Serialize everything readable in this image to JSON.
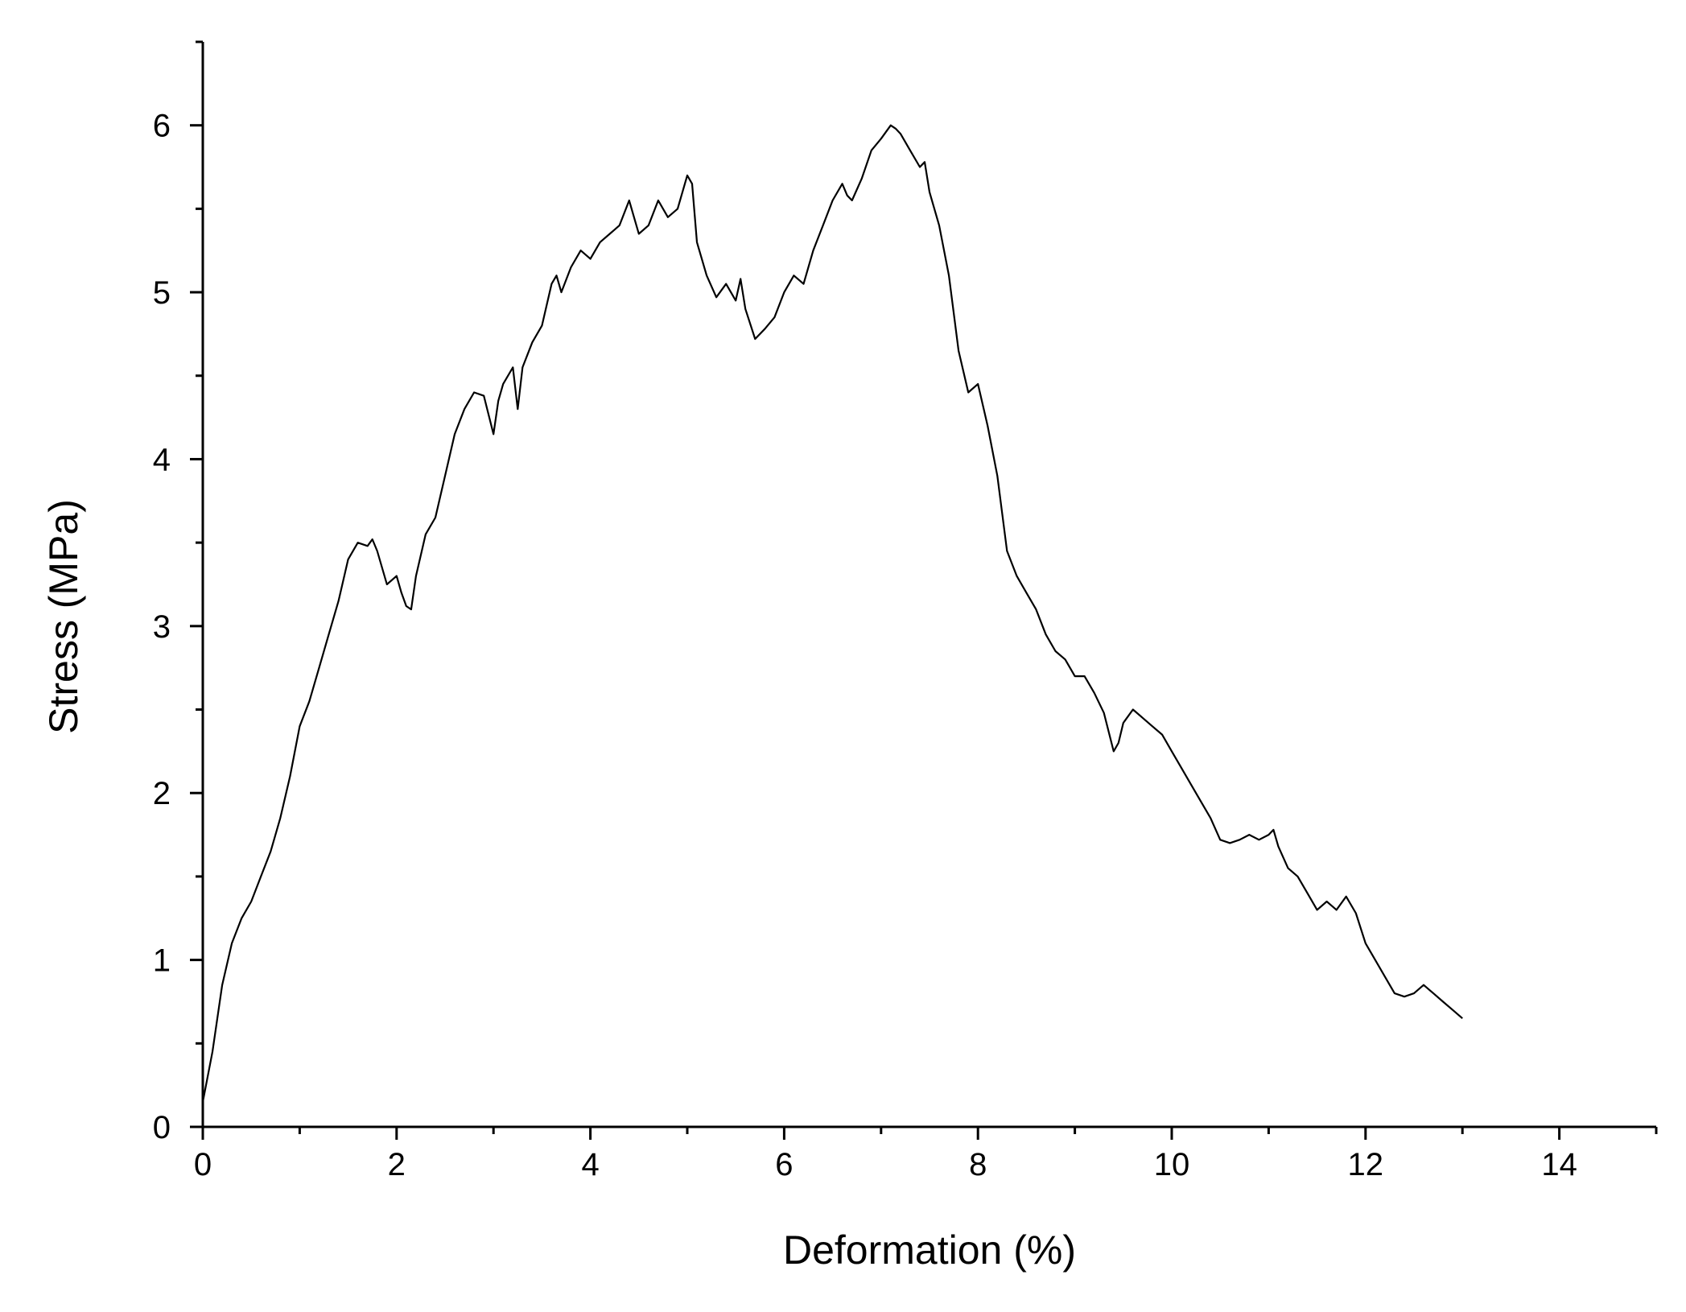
{
  "chart_data": {
    "type": "line",
    "xlabel": "Deformation (%)",
    "ylabel": "Stress (MPa)",
    "xlim": [
      0,
      15
    ],
    "ylim": [
      0,
      6.5
    ],
    "x_ticks": [
      0,
      2,
      4,
      6,
      8,
      10,
      12,
      14
    ],
    "x_tick_labels": [
      "0",
      "2",
      "4",
      "6",
      "8",
      "10",
      "12",
      "14"
    ],
    "y_ticks": [
      0,
      1,
      2,
      3,
      4,
      5,
      6
    ],
    "y_tick_labels": [
      "0",
      "1",
      "2",
      "3",
      "4",
      "5",
      "6"
    ],
    "grid": false,
    "line_color": "#000000",
    "series": [
      {
        "x": [
          0,
          0.1,
          0.2,
          0.3,
          0.4,
          0.5,
          0.6,
          0.7,
          0.8,
          0.9,
          1.0,
          1.1,
          1.2,
          1.3,
          1.4,
          1.5,
          1.6,
          1.7,
          1.75,
          1.8,
          1.9,
          2.0,
          2.05,
          2.1,
          2.15,
          2.2,
          2.3,
          2.4,
          2.5,
          2.6,
          2.7,
          2.8,
          2.9,
          3.0,
          3.05,
          3.1,
          3.2,
          3.25,
          3.3,
          3.4,
          3.5,
          3.6,
          3.65,
          3.7,
          3.8,
          3.9,
          4.0,
          4.1,
          4.2,
          4.3,
          4.4,
          4.45,
          4.5,
          4.6,
          4.7,
          4.75,
          4.8,
          4.9,
          5.0,
          5.05,
          5.1,
          5.2,
          5.3,
          5.4,
          5.5,
          5.55,
          5.6,
          5.7,
          5.8,
          5.9,
          6.0,
          6.1,
          6.2,
          6.3,
          6.4,
          6.5,
          6.6,
          6.65,
          6.7,
          6.8,
          6.9,
          7.0,
          7.1,
          7.15,
          7.2,
          7.3,
          7.4,
          7.45,
          7.5,
          7.6,
          7.7,
          7.8,
          7.9,
          8.0,
          8.1,
          8.2,
          8.3,
          8.4,
          8.5,
          8.6,
          8.7,
          8.8,
          8.9,
          9.0,
          9.1,
          9.2,
          9.3,
          9.4,
          9.45,
          9.5,
          9.6,
          9.7,
          9.8,
          9.9,
          10.0,
          10.1,
          10.2,
          10.3,
          10.4,
          10.5,
          10.6,
          10.7,
          10.8,
          10.9,
          11.0,
          11.05,
          11.1,
          11.2,
          11.3,
          11.4,
          11.5,
          11.6,
          11.7,
          11.8,
          11.9,
          12.0,
          12.1,
          12.2,
          12.3,
          12.4,
          12.5,
          12.6,
          12.7,
          12.8,
          12.9,
          13.0
        ],
        "y": [
          0.15,
          0.45,
          0.85,
          1.1,
          1.25,
          1.35,
          1.5,
          1.65,
          1.85,
          2.1,
          2.4,
          2.55,
          2.75,
          2.95,
          3.15,
          3.4,
          3.5,
          3.48,
          3.52,
          3.45,
          3.25,
          3.3,
          3.2,
          3.12,
          3.1,
          3.3,
          3.55,
          3.65,
          3.9,
          4.15,
          4.3,
          4.4,
          4.38,
          4.15,
          4.35,
          4.45,
          4.55,
          4.3,
          4.55,
          4.7,
          4.8,
          5.05,
          5.1,
          5.0,
          5.15,
          5.25,
          5.2,
          5.3,
          5.35,
          5.4,
          5.55,
          5.45,
          5.35,
          5.4,
          5.55,
          5.5,
          5.45,
          5.5,
          5.7,
          5.65,
          5.3,
          5.1,
          4.97,
          5.05,
          4.95,
          5.08,
          4.9,
          4.72,
          4.78,
          4.85,
          5.0,
          5.1,
          5.05,
          5.25,
          5.4,
          5.55,
          5.65,
          5.58,
          5.55,
          5.68,
          5.85,
          5.92,
          6.0,
          5.98,
          5.95,
          5.85,
          5.75,
          5.78,
          5.6,
          5.4,
          5.1,
          4.65,
          4.4,
          4.45,
          4.2,
          3.9,
          3.45,
          3.3,
          3.2,
          3.1,
          2.95,
          2.85,
          2.8,
          2.7,
          2.7,
          2.6,
          2.48,
          2.25,
          2.3,
          2.42,
          2.5,
          2.45,
          2.4,
          2.35,
          2.25,
          2.15,
          2.05,
          1.95,
          1.85,
          1.72,
          1.7,
          1.72,
          1.75,
          1.72,
          1.75,
          1.78,
          1.68,
          1.55,
          1.5,
          1.4,
          1.3,
          1.35,
          1.3,
          1.38,
          1.28,
          1.1,
          1.0,
          0.9,
          0.8,
          0.78,
          0.8,
          0.85,
          0.8,
          0.75,
          0.7,
          0.65
        ]
      }
    ]
  }
}
